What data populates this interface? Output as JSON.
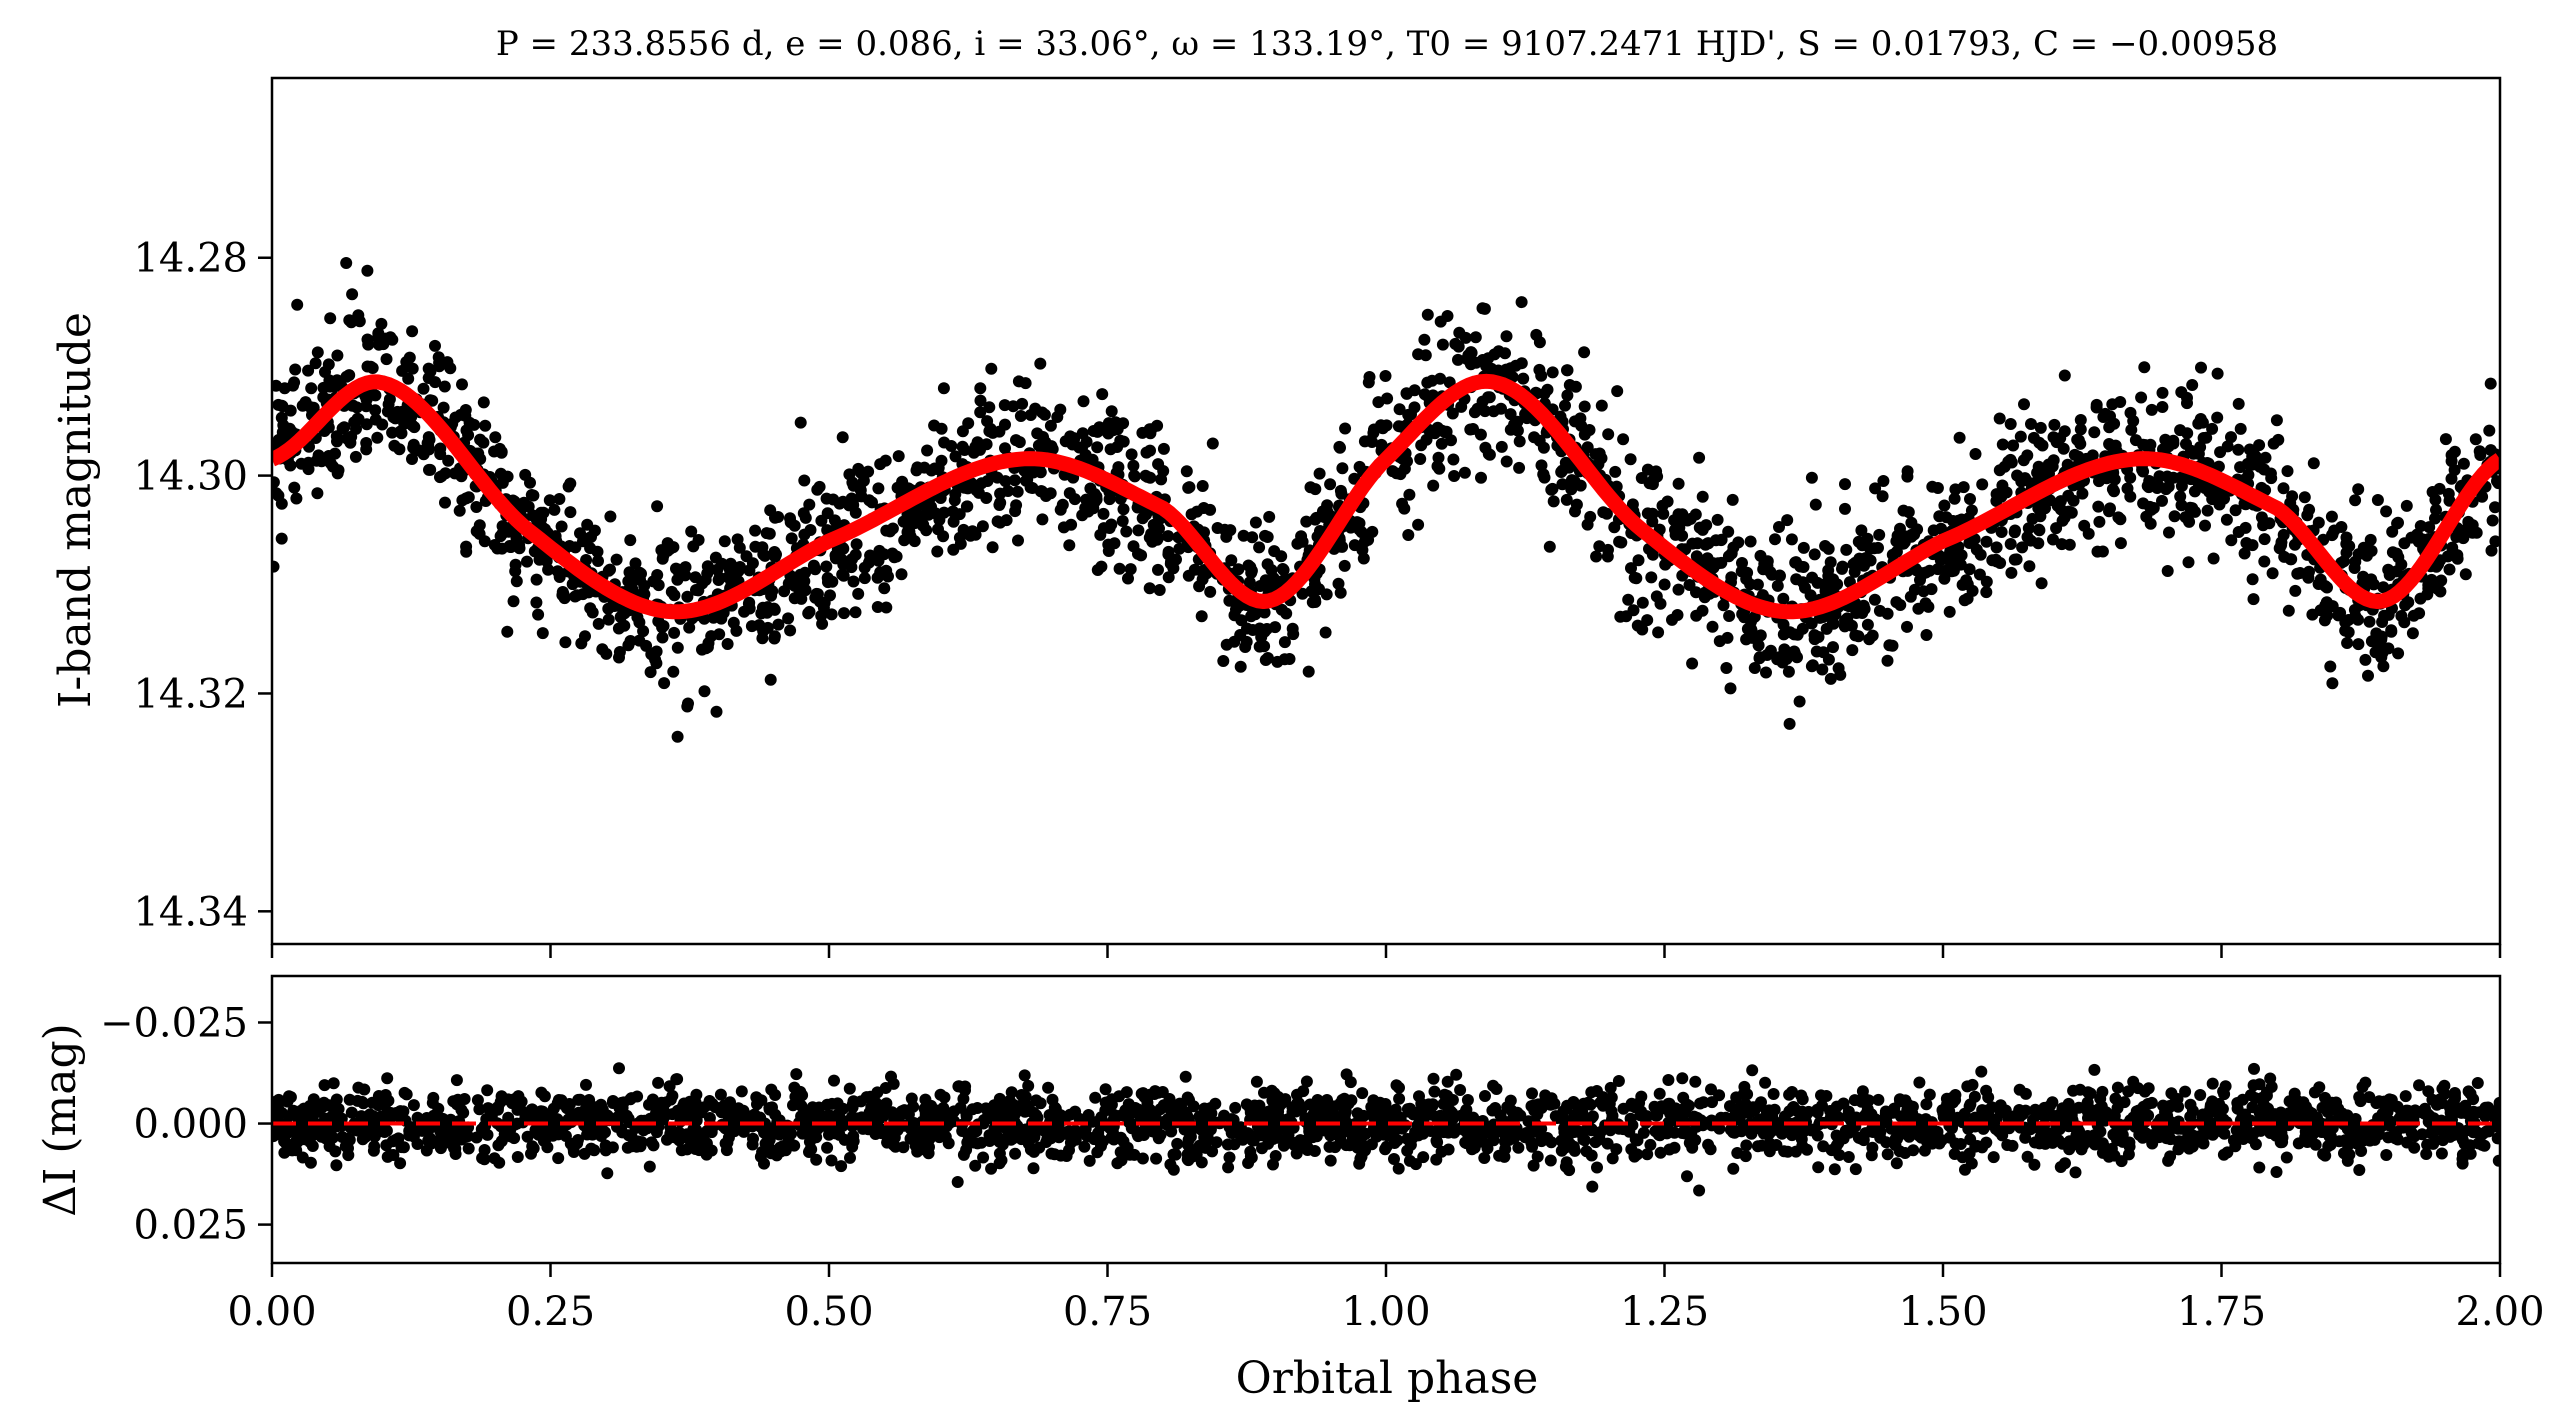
{
  "chart_data": [
    {
      "type": "scatter",
      "panel": "top",
      "title": "P = 233.8556 d, e = 0.086, i = 33.06°, ω = 133.19°, T0 = 9107.2471 HJD', S = 0.01793, C = −0.00958",
      "xlabel": "",
      "ylabel": "I-band magnitude",
      "xlim": [
        0.0,
        2.0
      ],
      "ylim": [
        14.343,
        14.2635
      ],
      "y_inverted": true,
      "yticks": [
        14.28,
        14.3,
        14.32,
        14.34
      ],
      "ytick_labels": [
        "14.28",
        "14.30",
        "14.32",
        "14.34"
      ],
      "xticks": [
        0.0,
        0.25,
        0.5,
        0.75,
        1.0,
        1.25,
        1.5,
        1.75,
        2.0
      ],
      "x_ticklabels_shown": false,
      "point_color": "#000000",
      "model_color": "#ff0000",
      "model_key_points": [
        {
          "x": 0.0,
          "y": 14.2985
        },
        {
          "x": 0.1,
          "y": 14.2915
        },
        {
          "x": 0.23,
          "y": 14.305
        },
        {
          "x": 0.36,
          "y": 14.3125
        },
        {
          "x": 0.5,
          "y": 14.306
        },
        {
          "x": 0.67,
          "y": 14.2985
        },
        {
          "x": 0.8,
          "y": 14.303
        },
        {
          "x": 0.895,
          "y": 14.3115
        },
        {
          "x": 1.0,
          "y": 14.2985
        },
        {
          "x": 1.1,
          "y": 14.2915
        },
        {
          "x": 1.23,
          "y": 14.305
        },
        {
          "x": 1.36,
          "y": 14.3125
        },
        {
          "x": 1.5,
          "y": 14.306
        },
        {
          "x": 1.67,
          "y": 14.2985
        },
        {
          "x": 1.8,
          "y": 14.303
        },
        {
          "x": 1.895,
          "y": 14.3115
        },
        {
          "x": 2.0,
          "y": 14.2985
        }
      ],
      "scatter_around_model_mag": 0.008
    },
    {
      "type": "scatter",
      "panel": "bottom",
      "xlabel": "Orbital phase",
      "ylabel": "ΔI (mag)",
      "xlim": [
        0.0,
        2.0
      ],
      "ylim": [
        0.0345,
        -0.0365
      ],
      "y_inverted": true,
      "yticks": [
        -0.025,
        0.0,
        0.025
      ],
      "ytick_labels": [
        "−0.025",
        "0.000",
        "0.025"
      ],
      "xticks": [
        0.0,
        0.25,
        0.5,
        0.75,
        1.0,
        1.25,
        1.5,
        1.75,
        2.0
      ],
      "xtick_labels": [
        "0.00",
        "0.25",
        "0.50",
        "0.75",
        "1.00",
        "1.25",
        "1.50",
        "1.75",
        "2.00"
      ],
      "reference_line": {
        "y": 0.0,
        "style": "dashed",
        "color": "#ff0000"
      },
      "point_color": "#000000",
      "residual_scatter_mag": 0.007
    }
  ]
}
